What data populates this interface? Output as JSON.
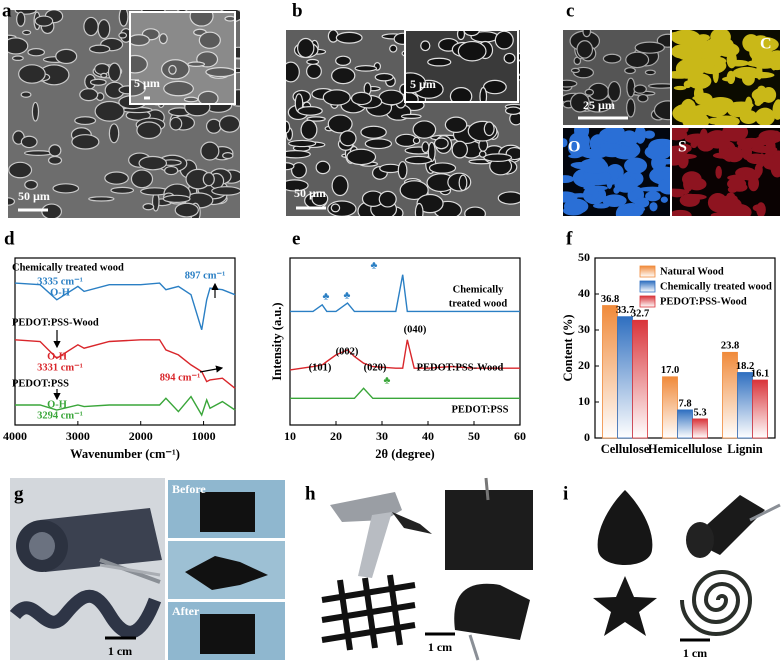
{
  "panels": {
    "a": {
      "label": "a",
      "scale": "50 µm",
      "inset_scale": "5 µm"
    },
    "b": {
      "label": "b",
      "scale": "50 µm",
      "inset_scale": "5 µm"
    },
    "c": {
      "label": "c",
      "scale": "25 µm",
      "maps": [
        "C",
        "O",
        "S"
      ]
    },
    "d": {
      "label": "d"
    },
    "e": {
      "label": "e"
    },
    "f": {
      "label": "f"
    },
    "g": {
      "label": "g",
      "before": "Before",
      "after": "After",
      "scale": "1 cm"
    },
    "h": {
      "label": "h",
      "scale": "1 cm"
    },
    "i": {
      "label": "i",
      "scale": "1 cm"
    }
  },
  "chart_data": [
    {
      "type": "line",
      "xlabel": "Wavenumber (cm⁻¹)",
      "x": [
        4000,
        3600,
        3335,
        3000,
        2900,
        2500,
        2000,
        1700,
        1600,
        1400,
        1200,
        1030,
        950,
        897,
        700,
        500
      ],
      "xlim": [
        4000,
        500
      ],
      "xticks": [
        4000,
        3000,
        2000,
        1000
      ],
      "ylim": [
        0,
        100
      ],
      "series": [
        {
          "color": "#2a7fc4",
          "values": [
            85,
            84,
            75,
            83,
            80,
            84,
            84,
            85,
            81,
            83,
            78,
            57,
            75,
            82,
            81,
            78
          ]
        },
        {
          "color": "#d9262b",
          "values": [
            51,
            50,
            40,
            48,
            46,
            50,
            51,
            51,
            45,
            42,
            36,
            32,
            26,
            27,
            28,
            22
          ]
        },
        {
          "color": "#3aa63a",
          "values": [
            12,
            12,
            9,
            12,
            11,
            12,
            12,
            12,
            16,
            8,
            17,
            6,
            15,
            10,
            14,
            9
          ]
        }
      ],
      "annotations": [
        "Chemically treated wood",
        "3335 cm⁻¹",
        "O-H",
        "897 cm⁻¹",
        "PEDOT:PSS-Wood",
        "O-H",
        "3331 cm⁻¹",
        "894 cm⁻¹",
        "PEDOT:PSS",
        "O-H",
        "3294 cm⁻¹"
      ]
    },
    {
      "type": "line",
      "xlabel": "2θ (degree)",
      "ylabel": "Intensity (a.u.)",
      "x": [
        10,
        15,
        17,
        18,
        20,
        22.5,
        24,
        26,
        28,
        33,
        34.5,
        35.5,
        37,
        40,
        45,
        50,
        55,
        60
      ],
      "xlim": [
        10,
        60
      ],
      "xticks": [
        10,
        20,
        30,
        40,
        50,
        60
      ],
      "ylim": [
        0,
        100
      ],
      "series": [
        {
          "color": "#2a7fc4",
          "values": [
            68,
            68,
            72,
            68,
            68,
            73,
            68,
            68,
            68,
            68,
            90,
            68,
            68,
            68,
            68,
            68,
            68,
            68
          ]
        },
        {
          "color": "#d9262b",
          "values": [
            33,
            35,
            36,
            38,
            42,
            45,
            41,
            37,
            35,
            34,
            34,
            51,
            34,
            34,
            35,
            34,
            34,
            34
          ]
        },
        {
          "color": "#3aa63a",
          "values": [
            16,
            16,
            16,
            16,
            16,
            16,
            16,
            22,
            16,
            16,
            16,
            16,
            16,
            16,
            16,
            16,
            16,
            16
          ]
        }
      ],
      "annotations": [
        "Chemically",
        "treated wood",
        "PEDOT:PSS-Wood",
        "PEDOT:PSS",
        "(040)",
        "(101)",
        "(002)",
        "(020)",
        "♣",
        "♣",
        "♣",
        "♣"
      ]
    },
    {
      "type": "bar",
      "ylabel": "Content (%)",
      "categories": [
        "Cellulose",
        "Hemicellulose",
        "Lignin"
      ],
      "ylim": [
        0,
        50
      ],
      "yticks": [
        0,
        10,
        20,
        30,
        40,
        50
      ],
      "legend": "upper right",
      "series": [
        {
          "name": "Natural Wood",
          "color": "#f08a3a",
          "values": [
            36.8,
            17.0,
            23.8
          ],
          "value_labels": [
            "36.8",
            "17.0",
            "23.8"
          ]
        },
        {
          "name": "Chemically treated wood",
          "color": "#2f6fc0",
          "values": [
            33.7,
            7.8,
            18.2
          ],
          "value_labels": [
            "33.7",
            "7.8",
            "18.2"
          ]
        },
        {
          "name": "PEDOT:PSS-Wood",
          "color": "#d9343a",
          "values": [
            32.7,
            5.3,
            16.1
          ],
          "value_labels": [
            "32.7",
            "5.3",
            "16.1"
          ]
        }
      ]
    }
  ]
}
